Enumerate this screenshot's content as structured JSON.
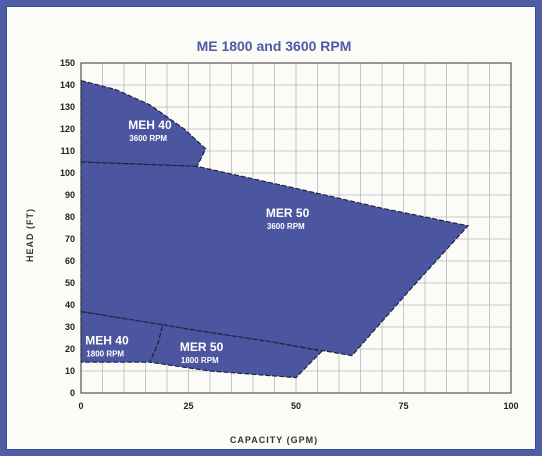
{
  "chart_data": {
    "type": "area",
    "title": "ME 1800 and 3600 RPM",
    "xlabel": "CAPACITY (GPM)",
    "ylabel": "HEAD (FT)",
    "xlim": [
      0,
      100
    ],
    "ylim": [
      0,
      150
    ],
    "x_ticks": [
      0,
      25,
      50,
      75,
      100
    ],
    "y_ticks": [
      0,
      10,
      20,
      30,
      40,
      50,
      60,
      70,
      80,
      90,
      100,
      110,
      120,
      130,
      140,
      150
    ],
    "grid": true,
    "fill_color": "#4b55a0",
    "areas": [
      {
        "name": "MEH 40",
        "sub": "3600 RPM",
        "points": [
          [
            0,
            142
          ],
          [
            8,
            138
          ],
          [
            16,
            131
          ],
          [
            24,
            120
          ],
          [
            29,
            111
          ],
          [
            27,
            103
          ],
          [
            0,
            105
          ]
        ],
        "label_at": [
          11,
          120
        ]
      },
      {
        "name": "MER 50",
        "sub": "3600 RPM",
        "points": [
          [
            0,
            105
          ],
          [
            27,
            103
          ],
          [
            50,
            93
          ],
          [
            70,
            84
          ],
          [
            90,
            76
          ],
          [
            77,
            48
          ],
          [
            63,
            17
          ],
          [
            45,
            23
          ],
          [
            25,
            29
          ],
          [
            0,
            37
          ]
        ],
        "label_at": [
          43,
          80
        ]
      },
      {
        "name": "MEH 40",
        "sub": "1800 RPM",
        "points": [
          [
            0,
            37
          ],
          [
            19,
            31
          ],
          [
            18,
            23
          ],
          [
            16,
            14
          ],
          [
            0,
            14
          ]
        ],
        "label_at": [
          1,
          22
        ]
      },
      {
        "name": "MER 50",
        "sub": "1800 RPM",
        "points": [
          [
            19,
            31
          ],
          [
            25,
            29
          ],
          [
            45,
            23
          ],
          [
            56,
            19
          ],
          [
            50,
            7
          ],
          [
            30,
            10
          ],
          [
            16,
            14
          ],
          [
            18,
            23
          ]
        ],
        "label_at": [
          23,
          19
        ]
      }
    ]
  }
}
